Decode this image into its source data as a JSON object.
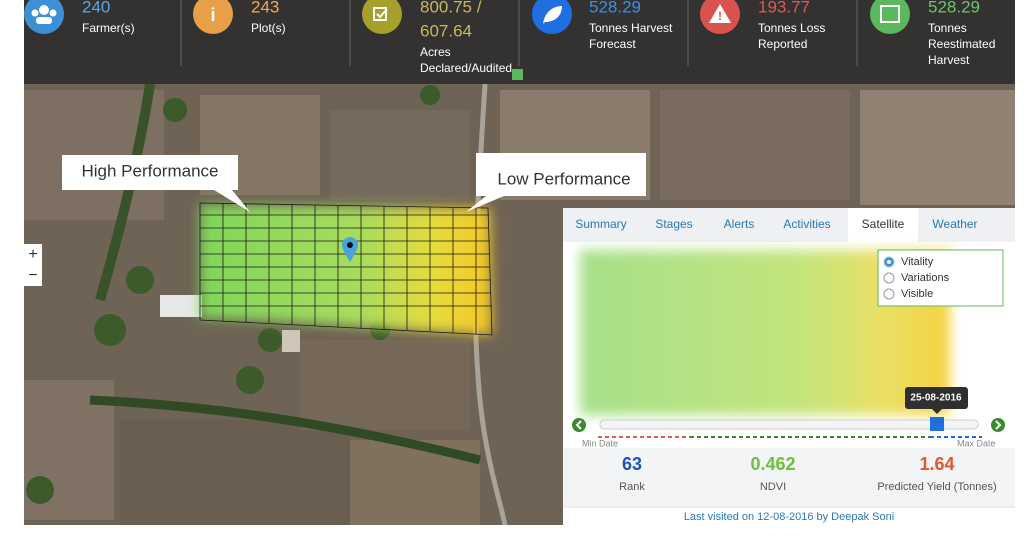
{
  "header": {
    "stats": [
      {
        "value": "240",
        "label": [
          "Farmer(s)"
        ]
      },
      {
        "value": "243",
        "label": [
          "Plot(s)"
        ]
      },
      {
        "value": "800.75 /",
        "second_value": "607.64",
        "label": [
          "Acres",
          "Declared/Audited"
        ]
      },
      {
        "value": "528.29",
        "label": [
          "Tonnes Harvest",
          "Forecast"
        ]
      },
      {
        "value": "193.77",
        "label": [
          "Tonnes Loss",
          "Reported"
        ]
      },
      {
        "value": "528.29",
        "label": [
          "Tonnes",
          "Reestimated",
          "Harvest"
        ]
      }
    ]
  },
  "map": {
    "callouts": [
      "High Performance",
      "Low Performance"
    ],
    "zoom": [
      "+",
      "−"
    ]
  },
  "panel": {
    "tabs": [
      "Summary",
      "Stages",
      "Alerts",
      "Activities",
      "Satellite",
      "Weather"
    ],
    "layers": [
      "Vitality",
      "Variations",
      "Visible"
    ],
    "slider": {
      "date": "25-08-2016",
      "min_label": "Min Date",
      "max_label": "Max Date"
    },
    "metrics": [
      {
        "value": "63",
        "label": "Rank"
      },
      {
        "value": "0.462",
        "label": "NDVI"
      },
      {
        "value": "1.64",
        "label": "Predicted Yield (Tonnes)"
      }
    ],
    "footer": "Last visited on 12-08-2016 by Deepak Soni"
  }
}
